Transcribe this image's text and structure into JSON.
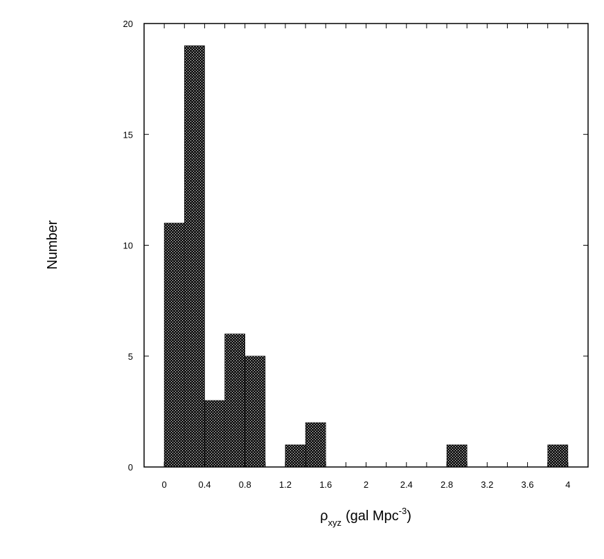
{
  "chart_data": {
    "type": "bar",
    "xlabel_symbol": "ρ",
    "xlabel_subscript": "xyz",
    "xlabel_unit": "(gal Mpc",
    "xlabel_superscript": "-3",
    "xlabel_close": ")",
    "ylabel": "Number",
    "bin_width": 0.2,
    "bins": [
      {
        "x0": 0.0,
        "x1": 0.2,
        "count": 11
      },
      {
        "x0": 0.2,
        "x1": 0.4,
        "count": 19
      },
      {
        "x0": 0.4,
        "x1": 0.6,
        "count": 3
      },
      {
        "x0": 0.6,
        "x1": 0.8,
        "count": 6
      },
      {
        "x0": 0.8,
        "x1": 1.0,
        "count": 5
      },
      {
        "x0": 1.2,
        "x1": 1.4,
        "count": 1
      },
      {
        "x0": 1.4,
        "x1": 1.6,
        "count": 2
      },
      {
        "x0": 2.8,
        "x1": 3.0,
        "count": 1
      },
      {
        "x0": 3.8,
        "x1": 4.0,
        "count": 1
      }
    ],
    "xlim": [
      -0.2,
      4.2
    ],
    "ylim": [
      0,
      20
    ],
    "xticks": [
      "0",
      "0.4",
      "0.8",
      "1.2",
      "1.6",
      "2",
      "2.4",
      "2.8",
      "3.2",
      "3.6",
      "4"
    ],
    "xtick_values": [
      0,
      0.4,
      0.8,
      1.2,
      1.6,
      2.0,
      2.4,
      2.8,
      3.2,
      3.6,
      4.0
    ],
    "yticks": [
      "0",
      "5",
      "10",
      "15",
      "20"
    ],
    "ytick_values": [
      0,
      5,
      10,
      15,
      20
    ],
    "grid": false,
    "legend": "none",
    "bar_fill": "#1a1a1a",
    "dot_color": "#ffffff"
  }
}
